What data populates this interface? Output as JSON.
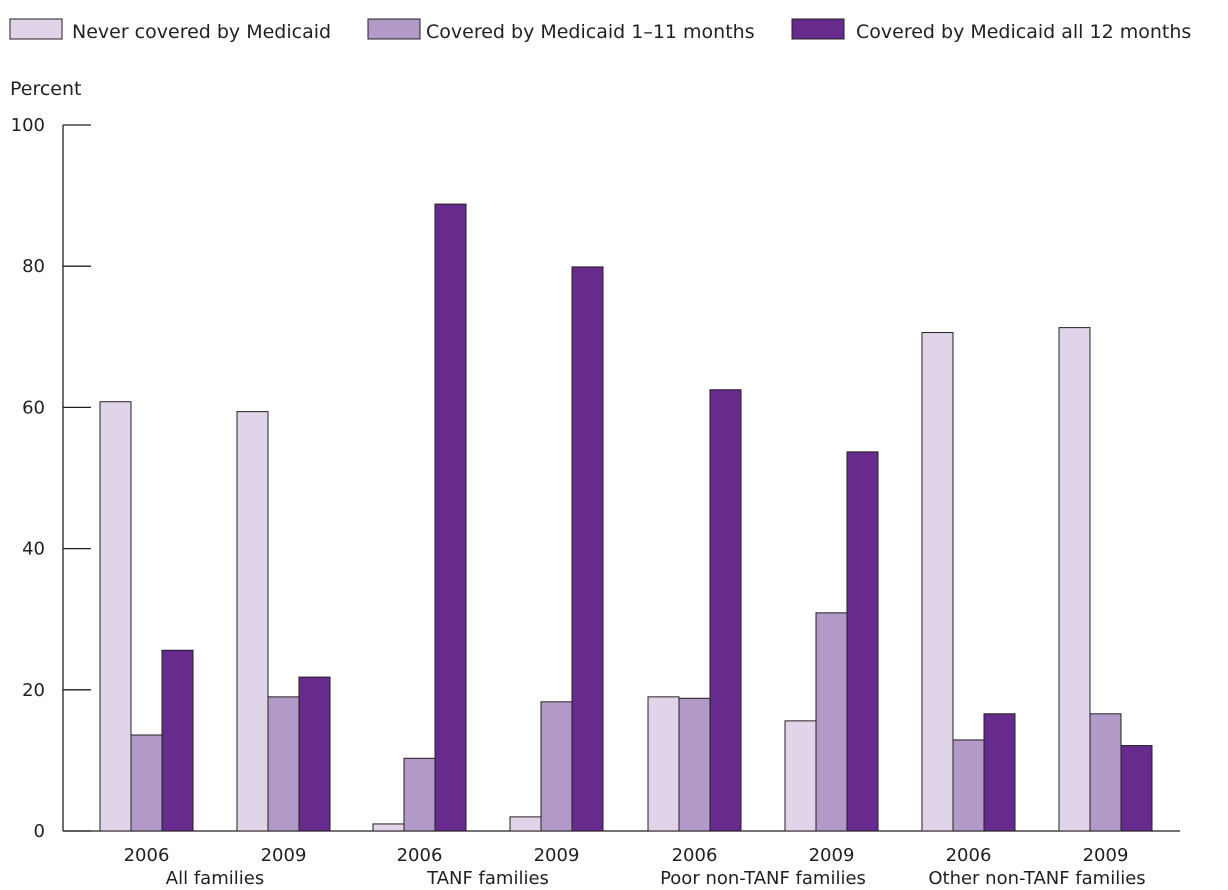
{
  "chart_data": {
    "type": "bar",
    "ylabel": "Percent",
    "ylim": [
      0,
      100
    ],
    "yticks": [
      0,
      20,
      40,
      60,
      80,
      100
    ],
    "grid": false,
    "legend_position": "top",
    "groups": [
      {
        "label": "All families",
        "years": [
          "2006",
          "2009"
        ]
      },
      {
        "label": "TANF families",
        "years": [
          "2006",
          "2009"
        ]
      },
      {
        "label": "Poor non-TANF families",
        "years": [
          "2006",
          "2009"
        ]
      },
      {
        "label": "Other non-TANF families",
        "years": [
          "2006",
          "2009"
        ]
      }
    ],
    "categories": [
      "2006",
      "2009",
      "2006",
      "2009",
      "2006",
      "2009",
      "2006",
      "2009"
    ],
    "series": [
      {
        "name": "Never covered by Medicaid",
        "color": "#e0d4e8",
        "values": [
          60.8,
          59.4,
          1.0,
          2.0,
          19.0,
          15.6,
          70.6,
          71.3
        ]
      },
      {
        "name": "Covered by Medicaid 1–11 months",
        "color": "#b199c8",
        "values": [
          13.6,
          19.0,
          10.3,
          18.3,
          18.8,
          30.9,
          12.9,
          16.6
        ]
      },
      {
        "name": "Covered by Medicaid all 12 months",
        "color": "#662b8c",
        "values": [
          25.6,
          21.8,
          88.8,
          79.9,
          62.5,
          53.7,
          16.6,
          12.1
        ]
      }
    ]
  }
}
